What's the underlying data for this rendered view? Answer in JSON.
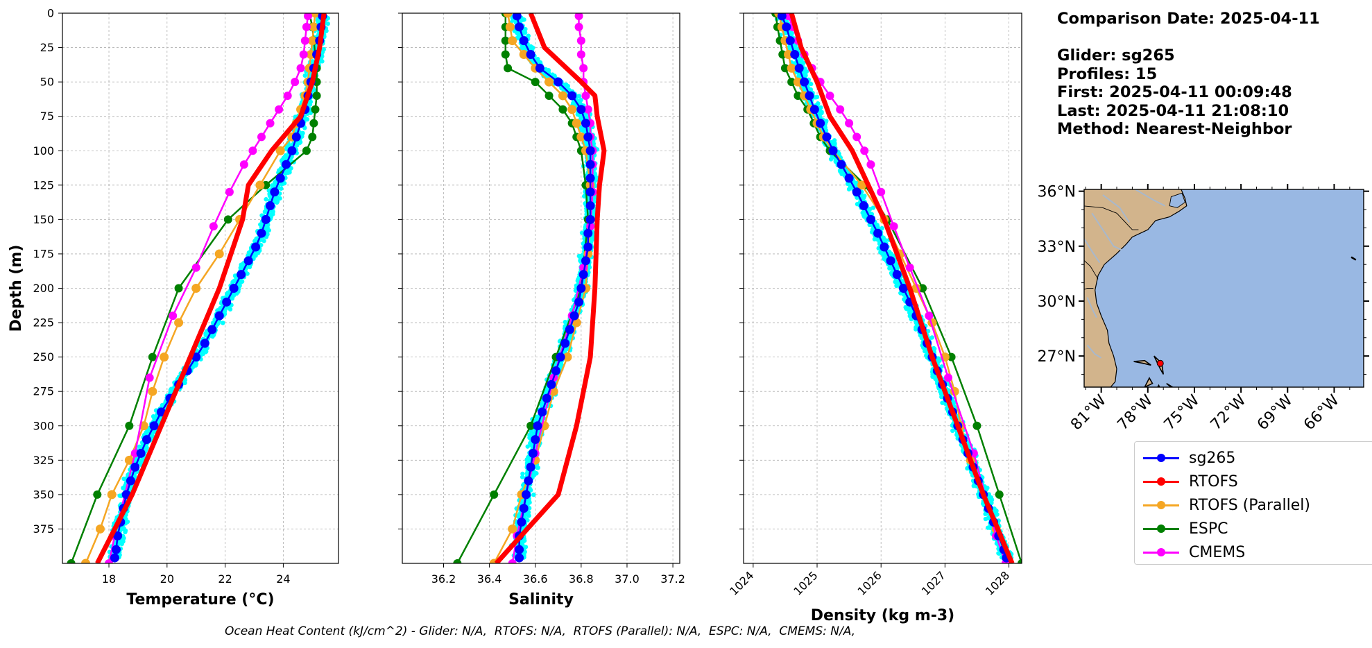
{
  "info": {
    "comparison_date": "Comparison Date: 2025-04-11",
    "glider": "Glider: sg265",
    "profiles": "Profiles: 15",
    "first": "First: 2025-04-11 00:09:48",
    "last": "Last: 2025-04-11 21:08:10",
    "method": "Method: Nearest-Neighbor"
  },
  "footer": "Ocean Heat Content (kJ/cm^2) - Glider: N/A,  RTOFS: N/A,  RTOFS (Parallel): N/A,  ESPC: N/A,  CMEMS: N/A,",
  "colors": {
    "sg265": "#0000ff",
    "RTOFS": "#ff0000",
    "RTOFS (Parallel)": "#f5a623",
    "ESPC": "#008000",
    "CMEMS": "#ff00ff",
    "scatter": "#00ffff",
    "ocean": "#99b8e3",
    "land": "#d2b48c"
  },
  "legend": [
    {
      "name": "sg265",
      "color": "#0000ff"
    },
    {
      "name": "RTOFS",
      "color": "#ff0000"
    },
    {
      "name": "RTOFS (Parallel)",
      "color": "#f5a623"
    },
    {
      "name": "ESPC",
      "color": "#008000"
    },
    {
      "name": "CMEMS",
      "color": "#ff00ff"
    }
  ],
  "chart_data": [
    {
      "type": "line",
      "xlabel": "Temperature (°C)",
      "ylabel": "Depth (m)",
      "xlim": [
        16.4,
        25.9
      ],
      "ylim": [
        400,
        0
      ],
      "xticks": [
        18,
        20,
        22,
        24
      ],
      "yticks": [
        0,
        25,
        50,
        75,
        100,
        125,
        150,
        175,
        200,
        225,
        250,
        275,
        300,
        325,
        350,
        375
      ],
      "grid": true,
      "series": [
        {
          "name": "sg265",
          "depth": [
            2,
            10,
            20,
            30,
            40,
            50,
            60,
            70,
            80,
            90,
            100,
            110,
            120,
            130,
            140,
            150,
            160,
            170,
            180,
            190,
            200,
            210,
            220,
            230,
            240,
            250,
            260,
            270,
            280,
            290,
            300,
            310,
            320,
            330,
            340,
            350,
            360,
            370,
            380,
            390,
            396
          ],
          "values": [
            25.35,
            25.3,
            25.25,
            25.15,
            25.05,
            24.95,
            24.85,
            24.75,
            24.6,
            24.45,
            24.3,
            24.1,
            23.9,
            23.7,
            23.55,
            23.4,
            23.25,
            23.05,
            22.8,
            22.55,
            22.3,
            22.05,
            21.8,
            21.55,
            21.3,
            21.0,
            20.7,
            20.4,
            20.1,
            19.8,
            19.55,
            19.3,
            19.1,
            18.9,
            18.75,
            18.6,
            18.5,
            18.4,
            18.3,
            18.25,
            18.2
          ]
        },
        {
          "name": "RTOFS",
          "depth": [
            0,
            25,
            50,
            75,
            100,
            125,
            150,
            200,
            250,
            300,
            350,
            400
          ],
          "values": [
            25.4,
            25.25,
            25.0,
            24.6,
            23.6,
            22.8,
            22.6,
            21.8,
            20.8,
            19.8,
            18.8,
            17.6
          ]
        },
        {
          "name": "RTOFS (Parallel)",
          "depth": [
            0,
            10,
            20,
            30,
            40,
            50,
            60,
            70,
            80,
            90,
            100,
            125,
            150,
            175,
            200,
            225,
            250,
            275,
            300,
            325,
            350,
            375,
            400
          ],
          "values": [
            25.1,
            25.05,
            25.0,
            24.95,
            24.9,
            24.85,
            24.75,
            24.6,
            24.45,
            24.3,
            23.9,
            23.2,
            22.5,
            21.8,
            21.0,
            20.4,
            19.9,
            19.5,
            19.2,
            18.7,
            18.1,
            17.7,
            17.2
          ]
        },
        {
          "name": "ESPC",
          "depth": [
            0,
            10,
            20,
            30,
            40,
            50,
            60,
            70,
            80,
            90,
            100,
            125,
            150,
            200,
            250,
            300,
            350,
            400
          ],
          "values": [
            24.9,
            25.0,
            25.05,
            25.1,
            25.15,
            25.15,
            25.15,
            25.1,
            25.05,
            25.0,
            24.8,
            23.4,
            22.1,
            20.4,
            19.5,
            18.7,
            17.6,
            16.7
          ]
        },
        {
          "name": "CMEMS",
          "depth": [
            2,
            10,
            20,
            30,
            40,
            50,
            60,
            70,
            80,
            90,
            100,
            110,
            130,
            155,
            185,
            220,
            265,
            320,
            380,
            400
          ],
          "values": [
            24.85,
            24.8,
            24.75,
            24.7,
            24.6,
            24.4,
            24.15,
            23.85,
            23.55,
            23.25,
            22.95,
            22.65,
            22.15,
            21.6,
            21.0,
            20.2,
            19.4,
            18.9,
            18.2,
            18.0
          ]
        }
      ]
    },
    {
      "type": "line",
      "xlabel": "Salinity",
      "ylabel": "",
      "xlim": [
        36.02,
        37.23
      ],
      "ylim": [
        400,
        0
      ],
      "xticks": [
        36.2,
        36.4,
        36.6,
        36.8,
        37.0,
        37.2
      ],
      "grid": true,
      "series": [
        {
          "name": "sg265",
          "depth": [
            2,
            10,
            20,
            30,
            40,
            50,
            60,
            70,
            80,
            90,
            100,
            110,
            120,
            130,
            140,
            150,
            160,
            170,
            180,
            190,
            200,
            210,
            220,
            230,
            240,
            250,
            260,
            270,
            280,
            290,
            300,
            310,
            320,
            330,
            340,
            350,
            360,
            370,
            380,
            390,
            396
          ],
          "values": [
            36.52,
            36.53,
            36.55,
            36.58,
            36.62,
            36.7,
            36.76,
            36.8,
            36.82,
            36.83,
            36.84,
            36.84,
            36.84,
            36.84,
            36.84,
            36.84,
            36.83,
            36.83,
            36.82,
            36.81,
            36.8,
            36.79,
            36.77,
            36.75,
            36.73,
            36.71,
            36.69,
            36.67,
            36.65,
            36.63,
            36.61,
            36.6,
            36.59,
            36.58,
            36.57,
            36.56,
            36.55,
            36.54,
            36.53,
            36.53,
            36.53
          ]
        },
        {
          "name": "RTOFS",
          "depth": [
            0,
            25,
            50,
            60,
            75,
            100,
            125,
            150,
            200,
            250,
            300,
            350,
            400
          ],
          "values": [
            36.58,
            36.64,
            36.8,
            36.86,
            36.87,
            36.9,
            36.88,
            36.87,
            36.86,
            36.84,
            36.78,
            36.7,
            36.43
          ]
        },
        {
          "name": "RTOFS (Parallel)",
          "depth": [
            0,
            10,
            20,
            30,
            40,
            50,
            60,
            70,
            80,
            90,
            100,
            125,
            150,
            175,
            200,
            225,
            250,
            275,
            300,
            325,
            350,
            375,
            400
          ],
          "values": [
            36.48,
            36.49,
            36.5,
            36.55,
            36.6,
            36.66,
            36.72,
            36.76,
            36.78,
            36.8,
            36.82,
            36.84,
            36.84,
            36.83,
            36.82,
            36.78,
            36.74,
            36.68,
            36.64,
            36.6,
            36.54,
            36.5,
            36.42
          ]
        },
        {
          "name": "ESPC",
          "depth": [
            0,
            10,
            20,
            30,
            40,
            50,
            60,
            70,
            80,
            90,
            100,
            125,
            150,
            200,
            250,
            300,
            350,
            400
          ],
          "values": [
            36.47,
            36.47,
            36.47,
            36.47,
            36.48,
            36.6,
            36.66,
            36.72,
            36.76,
            36.78,
            36.8,
            36.82,
            36.83,
            36.8,
            36.69,
            36.58,
            36.42,
            36.26
          ]
        },
        {
          "name": "CMEMS",
          "depth": [
            2,
            10,
            20,
            30,
            40,
            50,
            60,
            70,
            80,
            90,
            100,
            110,
            130,
            155,
            185,
            220,
            265,
            320,
            380,
            400
          ],
          "values": [
            36.79,
            36.79,
            36.8,
            36.8,
            36.81,
            36.81,
            36.82,
            36.83,
            36.84,
            36.84,
            36.85,
            36.85,
            36.85,
            36.84,
            36.81,
            36.76,
            36.68,
            36.6,
            36.52,
            36.5
          ]
        }
      ]
    },
    {
      "type": "line",
      "xlabel": "Density (kg m-3)",
      "ylabel": "",
      "xlim": [
        1023.85,
        1028.2
      ],
      "ylim": [
        400,
        0
      ],
      "xticks": [
        1024,
        1025,
        1026,
        1027,
        1028
      ],
      "grid": true,
      "series": [
        {
          "name": "sg265",
          "depth": [
            2,
            10,
            20,
            30,
            40,
            50,
            60,
            70,
            80,
            90,
            100,
            110,
            120,
            130,
            140,
            150,
            160,
            170,
            180,
            190,
            200,
            210,
            220,
            230,
            240,
            250,
            260,
            270,
            280,
            290,
            300,
            310,
            320,
            330,
            340,
            350,
            360,
            370,
            380,
            390,
            396
          ],
          "values": [
            1024.45,
            1024.52,
            1024.58,
            1024.65,
            1024.72,
            1024.8,
            1024.88,
            1024.96,
            1025.05,
            1025.15,
            1025.25,
            1025.38,
            1025.5,
            1025.62,
            1025.73,
            1025.84,
            1025.95,
            1026.05,
            1026.15,
            1026.25,
            1026.35,
            1026.45,
            1026.55,
            1026.64,
            1026.72,
            1026.8,
            1026.88,
            1026.96,
            1027.04,
            1027.12,
            1027.2,
            1027.28,
            1027.36,
            1027.44,
            1027.52,
            1027.6,
            1027.68,
            1027.76,
            1027.84,
            1027.92,
            1027.96
          ]
        },
        {
          "name": "RTOFS",
          "depth": [
            0,
            25,
            50,
            75,
            100,
            125,
            150,
            200,
            250,
            300,
            350,
            400
          ],
          "values": [
            1024.6,
            1024.75,
            1025.0,
            1025.2,
            1025.55,
            1025.8,
            1026.05,
            1026.45,
            1026.8,
            1027.2,
            1027.6,
            1028.05
          ]
        },
        {
          "name": "RTOFS (Parallel)",
          "depth": [
            0,
            10,
            20,
            30,
            40,
            50,
            60,
            70,
            80,
            90,
            100,
            125,
            150,
            175,
            200,
            225,
            250,
            275,
            300,
            325,
            350,
            375,
            400
          ],
          "values": [
            1024.4,
            1024.45,
            1024.5,
            1024.55,
            1024.6,
            1024.7,
            1024.8,
            1024.9,
            1025.0,
            1025.1,
            1025.25,
            1025.7,
            1026.05,
            1026.3,
            1026.55,
            1026.8,
            1027.0,
            1027.15,
            1027.25,
            1027.4,
            1027.6,
            1027.8,
            1028.0
          ]
        },
        {
          "name": "ESPC",
          "depth": [
            0,
            10,
            20,
            30,
            40,
            50,
            60,
            70,
            80,
            90,
            100,
            125,
            150,
            200,
            250,
            300,
            350,
            400
          ],
          "values": [
            1024.35,
            1024.38,
            1024.42,
            1024.46,
            1024.5,
            1024.6,
            1024.7,
            1024.85,
            1024.95,
            1025.05,
            1025.2,
            1025.75,
            1026.1,
            1026.65,
            1027.1,
            1027.5,
            1027.85,
            1028.2
          ]
        },
        {
          "name": "CMEMS",
          "depth": [
            2,
            10,
            20,
            30,
            40,
            50,
            60,
            70,
            80,
            90,
            100,
            110,
            130,
            155,
            185,
            220,
            265,
            320,
            380,
            400
          ],
          "values": [
            1024.55,
            1024.62,
            1024.7,
            1024.8,
            1024.92,
            1025.05,
            1025.2,
            1025.36,
            1025.5,
            1025.62,
            1025.74,
            1025.84,
            1026.0,
            1026.2,
            1026.45,
            1026.75,
            1027.05,
            1027.45,
            1027.8,
            1027.95
          ]
        }
      ]
    }
  ],
  "map": {
    "lat_labels": [
      "36°N",
      "33°N",
      "30°N",
      "27°N"
    ],
    "lat_values": [
      36,
      33,
      30,
      27
    ],
    "lon_labels": [
      "81°W",
      "78°W",
      "75°W",
      "72°W",
      "69°W",
      "66°W"
    ],
    "lon_values": [
      -81,
      -78,
      -75,
      -72,
      -69,
      -66
    ],
    "extent": {
      "lon": [
        -82.1,
        -64.1
      ],
      "lat": [
        25.3,
        36.1
      ]
    },
    "glider_position": {
      "lon": -77.2,
      "lat": 26.6
    }
  }
}
